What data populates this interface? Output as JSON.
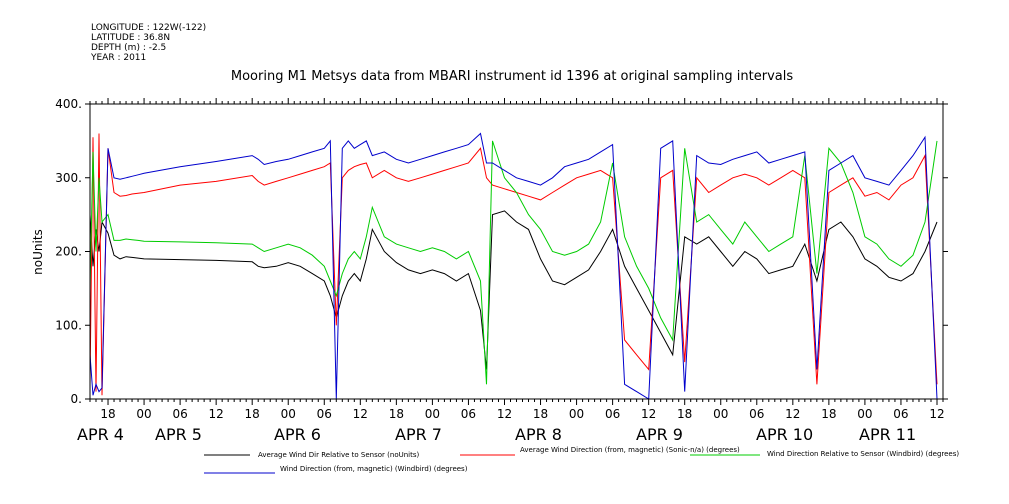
{
  "meta": {
    "longitude": "LONGITUDE : 122W(-122)",
    "latitude": "LATITUDE : 36.8N",
    "depth": "DEPTH (m) : -2.5",
    "year": "YEAR : 2011"
  },
  "chart_data": {
    "type": "line",
    "title": "Mooring M1 Metsys data from MBARI instrument id 1396 at original sampling intervals",
    "ylabel": "noUnits",
    "xlabel": "",
    "ylim": [
      0,
      400
    ],
    "yticks": [
      0,
      100,
      200,
      300,
      400
    ],
    "ytick_labels": [
      "0.",
      "100.",
      "200.",
      "300.",
      "400."
    ],
    "xlim_hours": [
      -9,
      133
    ],
    "xticks": [
      {
        "h": -6,
        "label": "18"
      },
      {
        "h": 0,
        "label": "00"
      },
      {
        "h": 6,
        "label": "06"
      },
      {
        "h": 12,
        "label": "12"
      },
      {
        "h": 18,
        "label": "18"
      },
      {
        "h": 24,
        "label": "00"
      },
      {
        "h": 30,
        "label": "06"
      },
      {
        "h": 36,
        "label": "12"
      },
      {
        "h": 42,
        "label": "18"
      },
      {
        "h": 48,
        "label": "00"
      },
      {
        "h": 54,
        "label": "06"
      },
      {
        "h": 60,
        "label": "12"
      },
      {
        "h": 66,
        "label": "18"
      },
      {
        "h": 72,
        "label": "00"
      },
      {
        "h": 78,
        "label": "06"
      },
      {
        "h": 84,
        "label": "12"
      },
      {
        "h": 90,
        "label": "18"
      },
      {
        "h": 96,
        "label": "00"
      },
      {
        "h": 102,
        "label": "06"
      },
      {
        "h": 108,
        "label": "12"
      },
      {
        "h": 114,
        "label": "18"
      },
      {
        "h": 120,
        "label": "00"
      },
      {
        "h": 126,
        "label": "06"
      },
      {
        "h": 132,
        "label": "12"
      }
    ],
    "day_labels": [
      {
        "h": -3,
        "label": "APR  4"
      },
      {
        "h": 9,
        "label": "APR  5"
      },
      {
        "h": 33,
        "label": "APR  6"
      },
      {
        "h": 57,
        "label": "APR  7"
      },
      {
        "h": 81,
        "label": "APR  8"
      },
      {
        "h": 105,
        "label": "APR  9"
      },
      {
        "h": 129,
        "label": "APR 10"
      },
      {
        "h": 153,
        "label": "APR 11"
      }
    ],
    "series": [
      {
        "name": "Average Wind Dir Relative to Sensor (noUnits)",
        "color": "#000000",
        "x": [
          -9,
          -8.5,
          -8,
          -7.5,
          -7,
          -6,
          -5,
          -4,
          -3,
          -2,
          -1,
          0,
          6,
          12,
          18,
          19,
          20,
          22,
          24,
          26,
          28,
          30,
          31,
          32,
          33,
          34,
          35,
          36,
          37,
          38,
          40,
          42,
          44,
          46,
          48,
          50,
          52,
          54,
          56,
          57,
          58,
          60,
          62,
          64,
          66,
          68,
          70,
          72,
          74,
          76,
          78,
          80,
          82,
          84,
          86,
          88,
          90,
          92,
          94,
          96,
          98,
          100,
          102,
          104,
          106,
          108,
          110,
          112,
          114,
          116,
          118,
          120,
          122,
          124,
          126,
          128,
          130,
          132
        ],
        "y": [
          250,
          180,
          230,
          200,
          240,
          225,
          195,
          190,
          193,
          192,
          191,
          190,
          189,
          188,
          186,
          180,
          178,
          180,
          185,
          180,
          170,
          160,
          140,
          110,
          140,
          160,
          170,
          160,
          190,
          230,
          200,
          185,
          175,
          170,
          175,
          170,
          160,
          170,
          120,
          40,
          250,
          255,
          240,
          230,
          190,
          160,
          155,
          165,
          175,
          200,
          230,
          180,
          150,
          120,
          90,
          60,
          220,
          210,
          220,
          200,
          180,
          200,
          190,
          170,
          175,
          180,
          210,
          160,
          230,
          240,
          220,
          190,
          180,
          165,
          160,
          170,
          200,
          240
        ]
      },
      {
        "name": "Average Wind Direction (from, magnetic) (Sonic-n/a) (degrees)",
        "color": "#ff0000",
        "x": [
          -9,
          -8.5,
          -8,
          -7.5,
          -7,
          -6,
          -5.5,
          -5,
          -4,
          -3,
          -2,
          0,
          6,
          12,
          18,
          19,
          20,
          22,
          24,
          26,
          28,
          30,
          31,
          32,
          33,
          34,
          35,
          36,
          37,
          38,
          40,
          42,
          44,
          46,
          48,
          50,
          52,
          54,
          56,
          57,
          58,
          60,
          62,
          64,
          66,
          68,
          70,
          72,
          74,
          76,
          78,
          80,
          82,
          84,
          86,
          88,
          90,
          92,
          94,
          96,
          98,
          100,
          102,
          104,
          106,
          108,
          110,
          112,
          114,
          116,
          118,
          120,
          122,
          124,
          126,
          128,
          130,
          132
        ],
        "y": [
          20,
          355,
          10,
          360,
          5,
          340,
          310,
          280,
          275,
          276,
          278,
          280,
          290,
          295,
          303,
          295,
          290,
          295,
          300,
          305,
          310,
          315,
          320,
          100,
          300,
          310,
          315,
          318,
          320,
          300,
          310,
          300,
          295,
          300,
          305,
          310,
          315,
          320,
          340,
          300,
          290,
          285,
          280,
          275,
          270,
          280,
          290,
          300,
          305,
          310,
          300,
          80,
          60,
          40,
          300,
          310,
          50,
          300,
          280,
          290,
          300,
          305,
          300,
          290,
          300,
          310,
          300,
          20,
          280,
          290,
          300,
          275,
          280,
          270,
          290,
          300,
          330,
          20
        ]
      },
      {
        "name": "Wind Direction Relative to Sensor (Windbird) (degrees)",
        "color": "#00cc00",
        "x": [
          -9,
          -8.5,
          -8,
          -7.5,
          -7,
          -6,
          -5,
          -4,
          -3,
          -2,
          -1,
          0,
          6,
          12,
          18,
          19,
          20,
          22,
          24,
          26,
          28,
          30,
          31,
          32,
          33,
          34,
          35,
          36,
          37,
          38,
          40,
          42,
          44,
          46,
          48,
          50,
          52,
          54,
          56,
          57,
          58,
          60,
          62,
          64,
          66,
          68,
          70,
          72,
          74,
          76,
          78,
          80,
          82,
          84,
          86,
          88,
          90,
          92,
          94,
          96,
          98,
          100,
          102,
          104,
          106,
          108,
          110,
          112,
          114,
          116,
          118,
          120,
          122,
          124,
          126,
          128,
          130,
          132
        ],
        "y": [
          150,
          335,
          200,
          300,
          240,
          250,
          215,
          215,
          217,
          216,
          215,
          214,
          213,
          212,
          210,
          205,
          200,
          205,
          210,
          205,
          195,
          180,
          160,
          140,
          170,
          190,
          200,
          190,
          220,
          260,
          220,
          210,
          205,
          200,
          205,
          200,
          190,
          200,
          160,
          20,
          350,
          300,
          280,
          250,
          230,
          200,
          195,
          200,
          210,
          240,
          320,
          220,
          180,
          150,
          110,
          80,
          340,
          240,
          250,
          230,
          210,
          240,
          220,
          200,
          210,
          220,
          330,
          170,
          340,
          320,
          280,
          220,
          210,
          190,
          180,
          195,
          240,
          350
        ]
      },
      {
        "name": "Wind Direction (from, magnetic) (Windbird) (degrees)",
        "color": "#0000cc",
        "x": [
          -9,
          -8.5,
          -8,
          -7.5,
          -7,
          -6,
          -5,
          -4,
          -3,
          -2,
          -1,
          0,
          6,
          12,
          18,
          19,
          20,
          22,
          24,
          26,
          28,
          30,
          31,
          32,
          33,
          34,
          35,
          36,
          37,
          38,
          40,
          42,
          44,
          46,
          48,
          50,
          52,
          54,
          56,
          57,
          58,
          60,
          62,
          64,
          66,
          68,
          70,
          72,
          74,
          76,
          78,
          80,
          82,
          84,
          86,
          88,
          90,
          92,
          94,
          96,
          98,
          100,
          102,
          104,
          106,
          108,
          110,
          112,
          114,
          116,
          118,
          120,
          122,
          124,
          126,
          128,
          130,
          132
        ],
        "y": [
          60,
          5,
          20,
          10,
          15,
          340,
          300,
          298,
          300,
          302,
          304,
          306,
          315,
          322,
          330,
          325,
          318,
          322,
          325,
          330,
          335,
          340,
          350,
          0,
          340,
          350,
          340,
          345,
          350,
          330,
          335,
          325,
          320,
          325,
          330,
          335,
          340,
          345,
          360,
          320,
          320,
          310,
          300,
          295,
          290,
          300,
          315,
          320,
          325,
          335,
          345,
          20,
          10,
          0,
          340,
          350,
          10,
          330,
          320,
          318,
          325,
          330,
          335,
          320,
          325,
          330,
          335,
          40,
          310,
          320,
          330,
          300,
          295,
          290,
          310,
          330,
          355,
          0
        ]
      }
    ],
    "legend_placement": "bottom"
  },
  "legend": [
    {
      "label": "Average Wind Dir Relative to Sensor (noUnits)",
      "color": "#000000"
    },
    {
      "label": "Average Wind Direction (from, magnetic) (Sonic-n/a) (degrees)",
      "color": "#ff0000"
    },
    {
      "label": "Wind Direction Relative to Sensor (Windbird) (degrees)",
      "color": "#00cc00"
    },
    {
      "label": "Wind Direction (from, magnetic) (Windbird) (degrees)",
      "color": "#0000cc"
    }
  ]
}
